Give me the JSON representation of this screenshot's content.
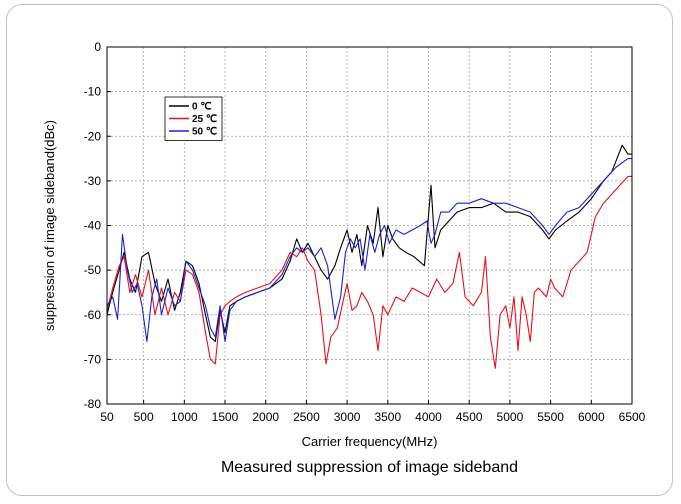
{
  "chart_data": {
    "type": "line",
    "title": "Measured suppression of image sideband",
    "xlabel": "Carrier frequency(MHz)",
    "ylabel": "suppression of image sideband(dBc)",
    "xlim": [
      50,
      6500
    ],
    "ylim": [
      -80,
      0
    ],
    "xticks": [
      50,
      500,
      1000,
      1500,
      2000,
      2500,
      3000,
      3500,
      4000,
      4500,
      5000,
      5500,
      6000,
      6500
    ],
    "yticks": [
      0,
      -10,
      -20,
      -30,
      -40,
      -50,
      -60,
      -70,
      -80
    ],
    "grid": true,
    "legend_position": "top-left",
    "series": [
      {
        "name": "0 ℃",
        "color": "#000000",
        "points": [
          [
            50,
            -60
          ],
          [
            120,
            -55
          ],
          [
            200,
            -50
          ],
          [
            260,
            -46
          ],
          [
            330,
            -52
          ],
          [
            400,
            -55
          ],
          [
            480,
            -47
          ],
          [
            560,
            -46
          ],
          [
            640,
            -53
          ],
          [
            720,
            -57
          ],
          [
            800,
            -52
          ],
          [
            880,
            -59
          ],
          [
            950,
            -55
          ],
          [
            1020,
            -48
          ],
          [
            1100,
            -49
          ],
          [
            1180,
            -53
          ],
          [
            1260,
            -60
          ],
          [
            1320,
            -65
          ],
          [
            1380,
            -66
          ],
          [
            1440,
            -59
          ],
          [
            1500,
            -64
          ],
          [
            1560,
            -58
          ],
          [
            1640,
            -57
          ],
          [
            1750,
            -56
          ],
          [
            1900,
            -55
          ],
          [
            2050,
            -54
          ],
          [
            2200,
            -52
          ],
          [
            2300,
            -48
          ],
          [
            2380,
            -43
          ],
          [
            2450,
            -46
          ],
          [
            2520,
            -44
          ],
          [
            2600,
            -47
          ],
          [
            2680,
            -50
          ],
          [
            2760,
            -52
          ],
          [
            2850,
            -49
          ],
          [
            2920,
            -45
          ],
          [
            3000,
            -41
          ],
          [
            3060,
            -46
          ],
          [
            3120,
            -42
          ],
          [
            3180,
            -49
          ],
          [
            3250,
            -40
          ],
          [
            3320,
            -44
          ],
          [
            3380,
            -36
          ],
          [
            3440,
            -47
          ],
          [
            3500,
            -40
          ],
          [
            3560,
            -43
          ],
          [
            3640,
            -45
          ],
          [
            3720,
            -46
          ],
          [
            3820,
            -47
          ],
          [
            3950,
            -49
          ],
          [
            4030,
            -31
          ],
          [
            4080,
            -45
          ],
          [
            4150,
            -41
          ],
          [
            4250,
            -39
          ],
          [
            4350,
            -37
          ],
          [
            4500,
            -36
          ],
          [
            4650,
            -36
          ],
          [
            4800,
            -35
          ],
          [
            4950,
            -37
          ],
          [
            5100,
            -37
          ],
          [
            5250,
            -38
          ],
          [
            5400,
            -41
          ],
          [
            5480,
            -43
          ],
          [
            5560,
            -41
          ],
          [
            5700,
            -39
          ],
          [
            5850,
            -37
          ],
          [
            6000,
            -34
          ],
          [
            6150,
            -30
          ],
          [
            6250,
            -28
          ],
          [
            6380,
            -22
          ],
          [
            6450,
            -24
          ],
          [
            6500,
            -24
          ]
        ]
      },
      {
        "name": "25 ℃",
        "color": "#e8101a",
        "points": [
          [
            50,
            -59
          ],
          [
            120,
            -54
          ],
          [
            200,
            -49
          ],
          [
            260,
            -47
          ],
          [
            330,
            -55
          ],
          [
            400,
            -51
          ],
          [
            480,
            -56
          ],
          [
            560,
            -50
          ],
          [
            640,
            -60
          ],
          [
            720,
            -54
          ],
          [
            800,
            -60
          ],
          [
            880,
            -55
          ],
          [
            950,
            -57
          ],
          [
            1020,
            -50
          ],
          [
            1100,
            -51
          ],
          [
            1180,
            -55
          ],
          [
            1260,
            -64
          ],
          [
            1320,
            -70
          ],
          [
            1380,
            -71
          ],
          [
            1440,
            -60
          ],
          [
            1500,
            -58
          ],
          [
            1560,
            -57
          ],
          [
            1640,
            -56
          ],
          [
            1750,
            -55
          ],
          [
            1900,
            -54
          ],
          [
            2050,
            -53
          ],
          [
            2200,
            -50
          ],
          [
            2300,
            -46
          ],
          [
            2380,
            -47
          ],
          [
            2450,
            -45
          ],
          [
            2520,
            -48
          ],
          [
            2600,
            -50
          ],
          [
            2680,
            -60
          ],
          [
            2740,
            -71
          ],
          [
            2800,
            -65
          ],
          [
            2880,
            -63
          ],
          [
            2950,
            -57
          ],
          [
            3000,
            -53
          ],
          [
            3060,
            -59
          ],
          [
            3120,
            -58
          ],
          [
            3180,
            -55
          ],
          [
            3250,
            -57
          ],
          [
            3320,
            -60
          ],
          [
            3380,
            -68
          ],
          [
            3440,
            -58
          ],
          [
            3500,
            -60
          ],
          [
            3600,
            -56
          ],
          [
            3700,
            -57
          ],
          [
            3800,
            -54
          ],
          [
            3900,
            -55
          ],
          [
            4000,
            -56
          ],
          [
            4100,
            -52
          ],
          [
            4200,
            -55
          ],
          [
            4300,
            -53
          ],
          [
            4380,
            -46
          ],
          [
            4450,
            -56
          ],
          [
            4550,
            -58
          ],
          [
            4650,
            -55
          ],
          [
            4700,
            -47
          ],
          [
            4760,
            -65
          ],
          [
            4820,
            -72
          ],
          [
            4880,
            -60
          ],
          [
            4950,
            -58
          ],
          [
            5000,
            -63
          ],
          [
            5050,
            -56
          ],
          [
            5100,
            -68
          ],
          [
            5150,
            -56
          ],
          [
            5200,
            -60
          ],
          [
            5250,
            -66
          ],
          [
            5300,
            -55
          ],
          [
            5350,
            -54
          ],
          [
            5450,
            -56
          ],
          [
            5500,
            -52
          ],
          [
            5550,
            -54
          ],
          [
            5650,
            -56
          ],
          [
            5750,
            -50
          ],
          [
            5850,
            -48
          ],
          [
            5950,
            -46
          ],
          [
            6050,
            -38
          ],
          [
            6150,
            -35
          ],
          [
            6250,
            -33
          ],
          [
            6350,
            -31
          ],
          [
            6450,
            -29
          ],
          [
            6500,
            -29
          ]
        ]
      },
      {
        "name": "50 ℃",
        "color": "#1a22d6",
        "points": [
          [
            50,
            -58
          ],
          [
            120,
            -56
          ],
          [
            180,
            -61
          ],
          [
            240,
            -42
          ],
          [
            300,
            -50
          ],
          [
            360,
            -55
          ],
          [
            420,
            -53
          ],
          [
            480,
            -58
          ],
          [
            540,
            -66
          ],
          [
            600,
            -56
          ],
          [
            660,
            -52
          ],
          [
            720,
            -60
          ],
          [
            800,
            -54
          ],
          [
            880,
            -58
          ],
          [
            950,
            -57
          ],
          [
            1020,
            -48
          ],
          [
            1100,
            -50
          ],
          [
            1180,
            -54
          ],
          [
            1260,
            -58
          ],
          [
            1320,
            -63
          ],
          [
            1380,
            -65
          ],
          [
            1440,
            -58
          ],
          [
            1500,
            -66
          ],
          [
            1560,
            -59
          ],
          [
            1640,
            -57
          ],
          [
            1750,
            -56
          ],
          [
            1900,
            -55
          ],
          [
            2050,
            -54
          ],
          [
            2200,
            -51
          ],
          [
            2300,
            -47
          ],
          [
            2380,
            -45
          ],
          [
            2450,
            -46
          ],
          [
            2520,
            -45
          ],
          [
            2600,
            -47
          ],
          [
            2680,
            -45
          ],
          [
            2760,
            -49
          ],
          [
            2850,
            -61
          ],
          [
            2920,
            -56
          ],
          [
            2980,
            -46
          ],
          [
            3040,
            -43
          ],
          [
            3100,
            -45
          ],
          [
            3160,
            -43
          ],
          [
            3220,
            -50
          ],
          [
            3280,
            -42
          ],
          [
            3340,
            -46
          ],
          [
            3400,
            -42
          ],
          [
            3460,
            -40
          ],
          [
            3520,
            -44
          ],
          [
            3600,
            -41
          ],
          [
            3700,
            -42
          ],
          [
            3800,
            -41
          ],
          [
            3900,
            -40
          ],
          [
            3980,
            -39
          ],
          [
            4030,
            -44
          ],
          [
            4080,
            -42
          ],
          [
            4150,
            -37
          ],
          [
            4250,
            -37
          ],
          [
            4350,
            -35
          ],
          [
            4500,
            -35
          ],
          [
            4650,
            -34
          ],
          [
            4800,
            -35
          ],
          [
            4950,
            -35
          ],
          [
            5100,
            -36
          ],
          [
            5250,
            -37
          ],
          [
            5400,
            -40
          ],
          [
            5480,
            -42
          ],
          [
            5560,
            -40
          ],
          [
            5700,
            -37
          ],
          [
            5850,
            -36
          ],
          [
            6000,
            -33
          ],
          [
            6150,
            -30
          ],
          [
            6300,
            -27
          ],
          [
            6450,
            -25
          ],
          [
            6500,
            -25
          ]
        ]
      }
    ]
  }
}
